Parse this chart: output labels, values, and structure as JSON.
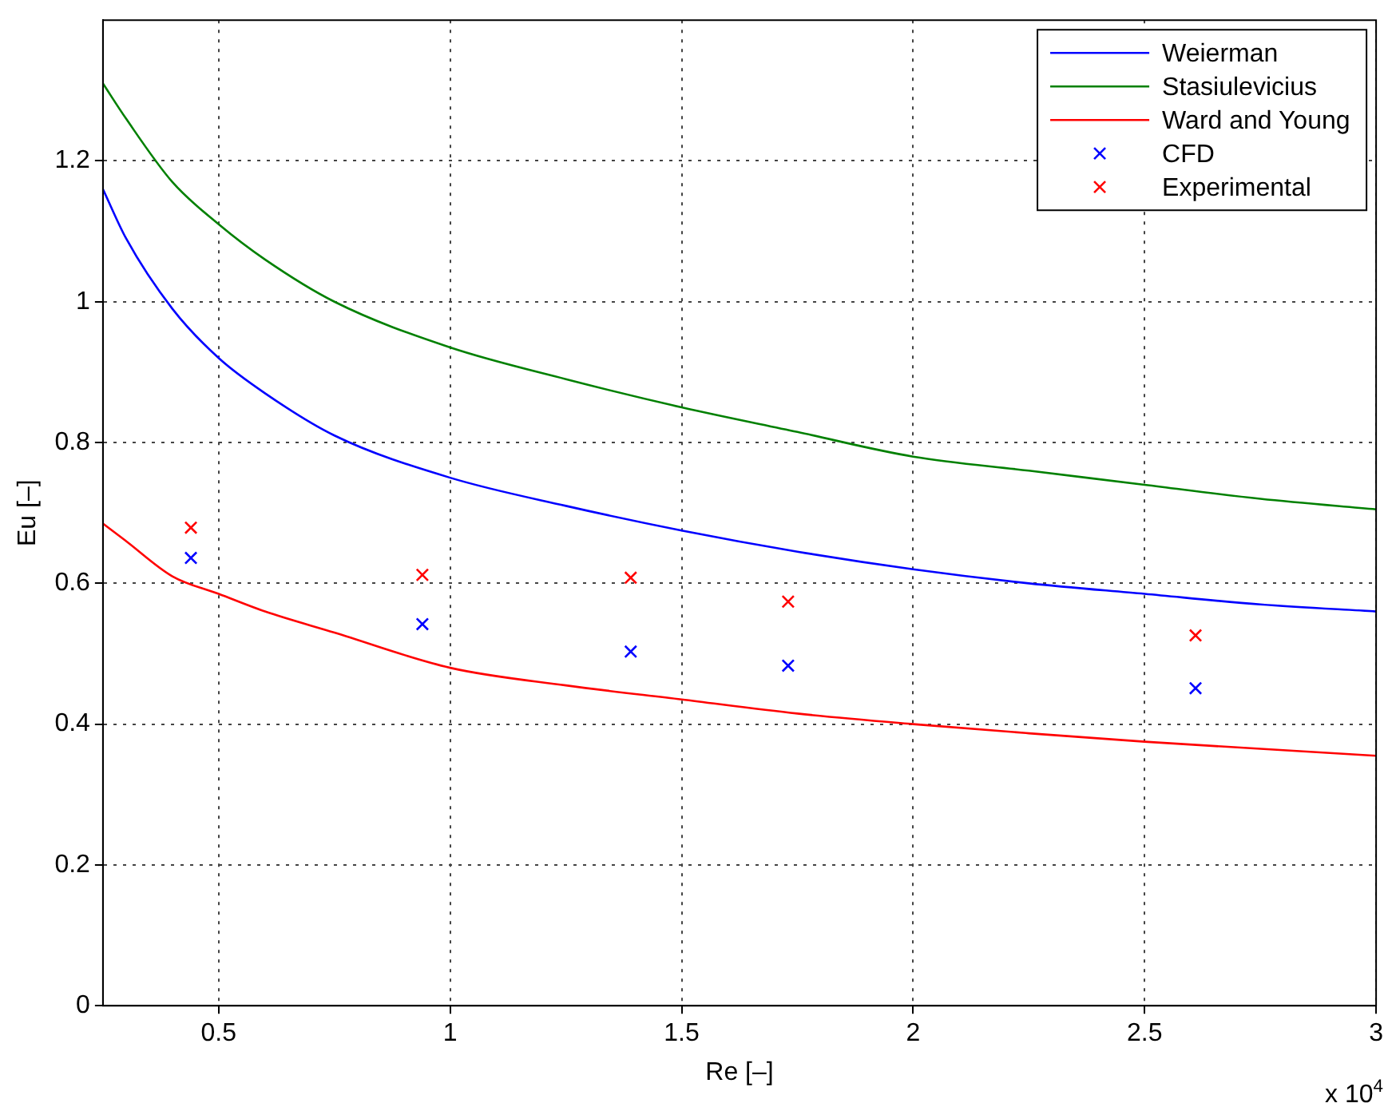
{
  "chart_data": {
    "type": "line",
    "xlabel": "Re [–]",
    "ylabel": "Eu [–]",
    "xlim": [
      0.25,
      3
    ],
    "xticks": [
      0.5,
      1,
      1.5,
      2,
      2.5,
      3
    ],
    "ylim": [
      0,
      1.4
    ],
    "yticks": [
      0,
      0.2,
      0.4,
      0.6,
      0.8,
      1,
      1.2
    ],
    "grid": true,
    "legend": "top right",
    "annotations": [
      "x 10$^{4}$"
    ],
    "series": [
      {
        "name": "Weierman",
        "color": "#0000ff",
        "marker": "none",
        "x": [
          0.25,
          0.3,
          0.4,
          0.5,
          0.6,
          0.75,
          1,
          1.25,
          1.5,
          1.75,
          2,
          2.25,
          2.5,
          2.75,
          3
        ],
        "values": [
          1.16,
          1.09,
          0.99,
          0.92,
          0.87,
          0.81,
          0.75,
          0.71,
          0.675,
          0.645,
          0.62,
          0.6,
          0.585,
          0.57,
          0.56
        ]
      },
      {
        "name": "Stasiulevicius",
        "color": "#008000",
        "marker": "none",
        "x": [
          0.25,
          0.3,
          0.4,
          0.5,
          0.6,
          0.75,
          1,
          1.25,
          1.5,
          1.75,
          2,
          2.25,
          2.5,
          2.75,
          3
        ],
        "values": [
          1.31,
          1.26,
          1.17,
          1.11,
          1.06,
          1.0,
          0.935,
          0.89,
          0.85,
          0.815,
          0.78,
          0.76,
          0.74,
          0.72,
          0.705
        ]
      },
      {
        "name": "Ward and Young",
        "color": "#ff0000",
        "marker": "none",
        "x": [
          0.25,
          0.3,
          0.4,
          0.5,
          0.6,
          0.75,
          1,
          1.25,
          1.5,
          1.75,
          2,
          2.25,
          2.5,
          2.75,
          3
        ],
        "values": [
          0.685,
          0.66,
          0.61,
          0.585,
          0.56,
          0.53,
          0.48,
          0.455,
          0.435,
          0.415,
          0.4,
          0.387,
          0.375,
          0.365,
          0.355
        ]
      },
      {
        "name": "CFD",
        "type": "scatter",
        "color": "#0000ff",
        "marker": "cross",
        "x": [
          0.44,
          0.94,
          1.39,
          1.73,
          2.61
        ],
        "values": [
          0.636,
          0.542,
          0.503,
          0.483,
          0.451
        ]
      },
      {
        "name": "Experimental",
        "type": "scatter",
        "color": "#ff0000",
        "marker": "cross",
        "x": [
          0.44,
          0.94,
          1.39,
          1.73,
          2.61
        ],
        "values": [
          0.679,
          0.612,
          0.608,
          0.574,
          0.526
        ]
      }
    ]
  }
}
